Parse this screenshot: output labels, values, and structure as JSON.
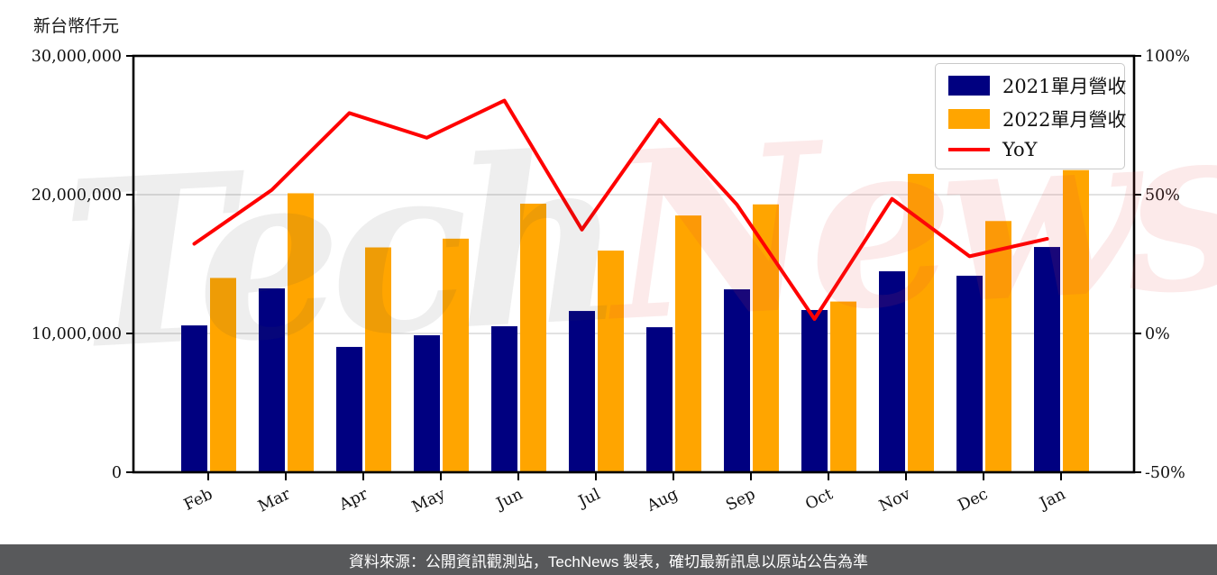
{
  "header": {
    "unit_label": "新台幣仟元"
  },
  "watermark": {
    "part1": "Tech",
    "part2": "News"
  },
  "legend": {
    "items": [
      {
        "label": "2021單月營收",
        "swatch": "bar",
        "color": "#000080"
      },
      {
        "label": "2022單月營收",
        "swatch": "bar",
        "color": "#FFA500"
      },
      {
        "label": "YoY",
        "swatch": "line",
        "color": "#FF0000"
      }
    ]
  },
  "footer": {
    "text": "資料來源：公開資訊觀測站，TechNews 製表，確切最新訊息以原站公告為準",
    "bg": "#58595B"
  },
  "chart_data": {
    "type": "bar+line",
    "title": "",
    "unit_label": "新台幣仟元",
    "categories": [
      "Feb",
      "Mar",
      "Apr",
      "May",
      "Jun",
      "Jul",
      "Aug",
      "Sep",
      "Oct",
      "Nov",
      "Dec",
      "Jan"
    ],
    "series": [
      {
        "name": "2021單月營收",
        "type": "bar",
        "axis": "left",
        "color": "#000080",
        "values": [
          10580000,
          13250000,
          9030000,
          9870000,
          10520000,
          11620000,
          10450000,
          13180000,
          11690000,
          14480000,
          14160000,
          16230000
        ]
      },
      {
        "name": "2022單月營收",
        "type": "bar",
        "axis": "left",
        "color": "#FFA500",
        "values": [
          14000000,
          20100000,
          16200000,
          16830000,
          19350000,
          15970000,
          18500000,
          19300000,
          12300000,
          21500000,
          18100000,
          21770000
        ]
      },
      {
        "name": "YoY",
        "type": "line",
        "axis": "right",
        "color": "#FF0000",
        "values": [
          32.3,
          51.7,
          79.4,
          70.5,
          83.9,
          37.4,
          77.0,
          46.4,
          5.2,
          48.5,
          27.8,
          34.1
        ]
      }
    ],
    "left_axis": {
      "range": [
        0,
        30000000
      ],
      "ticks": [
        0,
        10000000,
        20000000,
        30000000
      ],
      "tick_labels": [
        "0",
        "10,000,000",
        "20,000,000",
        "30,000,000"
      ]
    },
    "right_axis": {
      "range": [
        -50,
        100
      ],
      "ticks": [
        -50,
        0,
        50,
        100
      ],
      "tick_labels": [
        "-50%",
        "0%",
        "50%",
        "100%"
      ]
    },
    "grid": {
      "horizontal_at": [
        10000000,
        20000000
      ],
      "color": "#D8D8D8"
    },
    "legend_position": "upper-right"
  }
}
